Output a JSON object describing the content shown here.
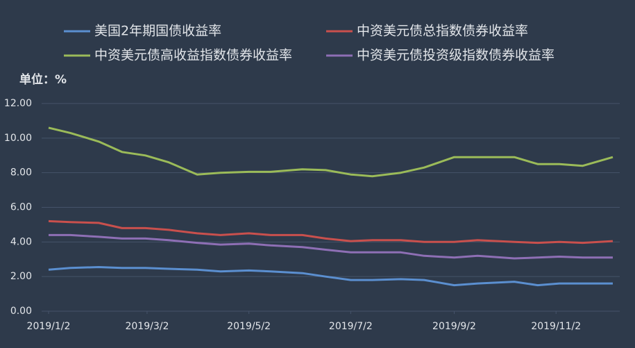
{
  "chart_data": {
    "type": "line",
    "subtitle": "单位：%",
    "x": [
      "2019/1/2",
      "2019/1/15",
      "2019/2/1",
      "2019/2/15",
      "2019/3/1",
      "2019/3/15",
      "2019/4/1",
      "2019/4/15",
      "2019/5/2",
      "2019/5/15",
      "2019/6/3",
      "2019/6/17",
      "2019/7/2",
      "2019/7/15",
      "2019/8/1",
      "2019/8/15",
      "2019/9/2",
      "2019/9/16",
      "2019/10/8",
      "2019/10/22",
      "2019/11/4",
      "2019/11/18",
      "2019/12/6"
    ],
    "xlim": [
      "2019/1/2",
      "2019/12/6"
    ],
    "xticks": [
      "2019/1/2",
      "2019/3/2",
      "2019/5/2",
      "2019/7/2",
      "2019/9/2",
      "2019/11/2"
    ],
    "ylim": [
      0,
      12
    ],
    "yticks": [
      {
        "value": 0,
        "label": "0.00"
      },
      {
        "value": 2,
        "label": "2.00"
      },
      {
        "value": 4,
        "label": "4.00"
      },
      {
        "value": 6,
        "label": "6.00"
      },
      {
        "value": 8,
        "label": "8.00"
      },
      {
        "value": 10,
        "label": "10.00"
      },
      {
        "value": 12,
        "label": "12.00"
      }
    ],
    "grid": true,
    "series": [
      {
        "name": "美国2年期国债收益率",
        "color": "#5b8fd0",
        "values": [
          2.4,
          2.5,
          2.55,
          2.5,
          2.5,
          2.45,
          2.4,
          2.3,
          2.35,
          2.3,
          2.2,
          2.0,
          1.8,
          1.8,
          1.85,
          1.8,
          1.5,
          1.6,
          1.7,
          1.5,
          1.6,
          1.6,
          1.6
        ]
      },
      {
        "name": "中资美元债总指数债券收益率",
        "color": "#c9504d",
        "values": [
          5.2,
          5.15,
          5.1,
          4.8,
          4.8,
          4.7,
          4.5,
          4.4,
          4.5,
          4.4,
          4.4,
          4.2,
          4.05,
          4.1,
          4.1,
          4.0,
          4.0,
          4.1,
          4.0,
          3.95,
          4.0,
          3.95,
          4.05
        ]
      },
      {
        "name": "中资美元债高收益指数债券收益率",
        "color": "#9bbb59",
        "values": [
          10.6,
          10.3,
          9.8,
          9.2,
          9.0,
          8.6,
          7.9,
          8.0,
          8.05,
          8.05,
          8.2,
          8.15,
          7.9,
          7.8,
          8.0,
          8.3,
          8.9,
          8.9,
          8.9,
          8.5,
          8.5,
          8.4,
          8.9
        ]
      },
      {
        "name": "中资美元债投资级指数债券收益率",
        "color": "#8e6fb5",
        "values": [
          4.4,
          4.4,
          4.3,
          4.2,
          4.2,
          4.1,
          3.95,
          3.85,
          3.9,
          3.8,
          3.7,
          3.55,
          3.4,
          3.4,
          3.4,
          3.2,
          3.1,
          3.2,
          3.05,
          3.1,
          3.15,
          3.1,
          3.1
        ]
      }
    ]
  }
}
